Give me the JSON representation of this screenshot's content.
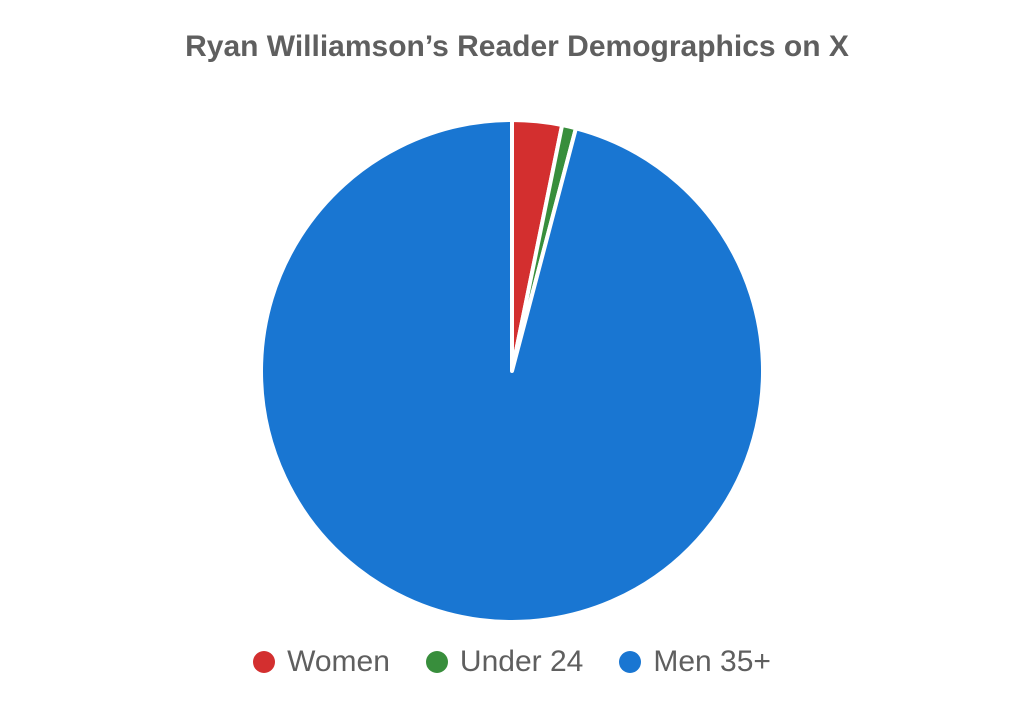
{
  "chart_data": {
    "type": "pie",
    "title": "Ryan Williamson’s Reader Demographics on X",
    "start_angle_deg": 0,
    "direction": "clockwise",
    "legend_position": "bottom",
    "slices": [
      {
        "label": "Women",
        "value": 3.2,
        "color": "#d32f2f"
      },
      {
        "label": "Under 24",
        "value": 0.9,
        "color": "#388e3c"
      },
      {
        "label": "Men 35+",
        "value": 95.9,
        "color": "#1976d2"
      }
    ]
  }
}
